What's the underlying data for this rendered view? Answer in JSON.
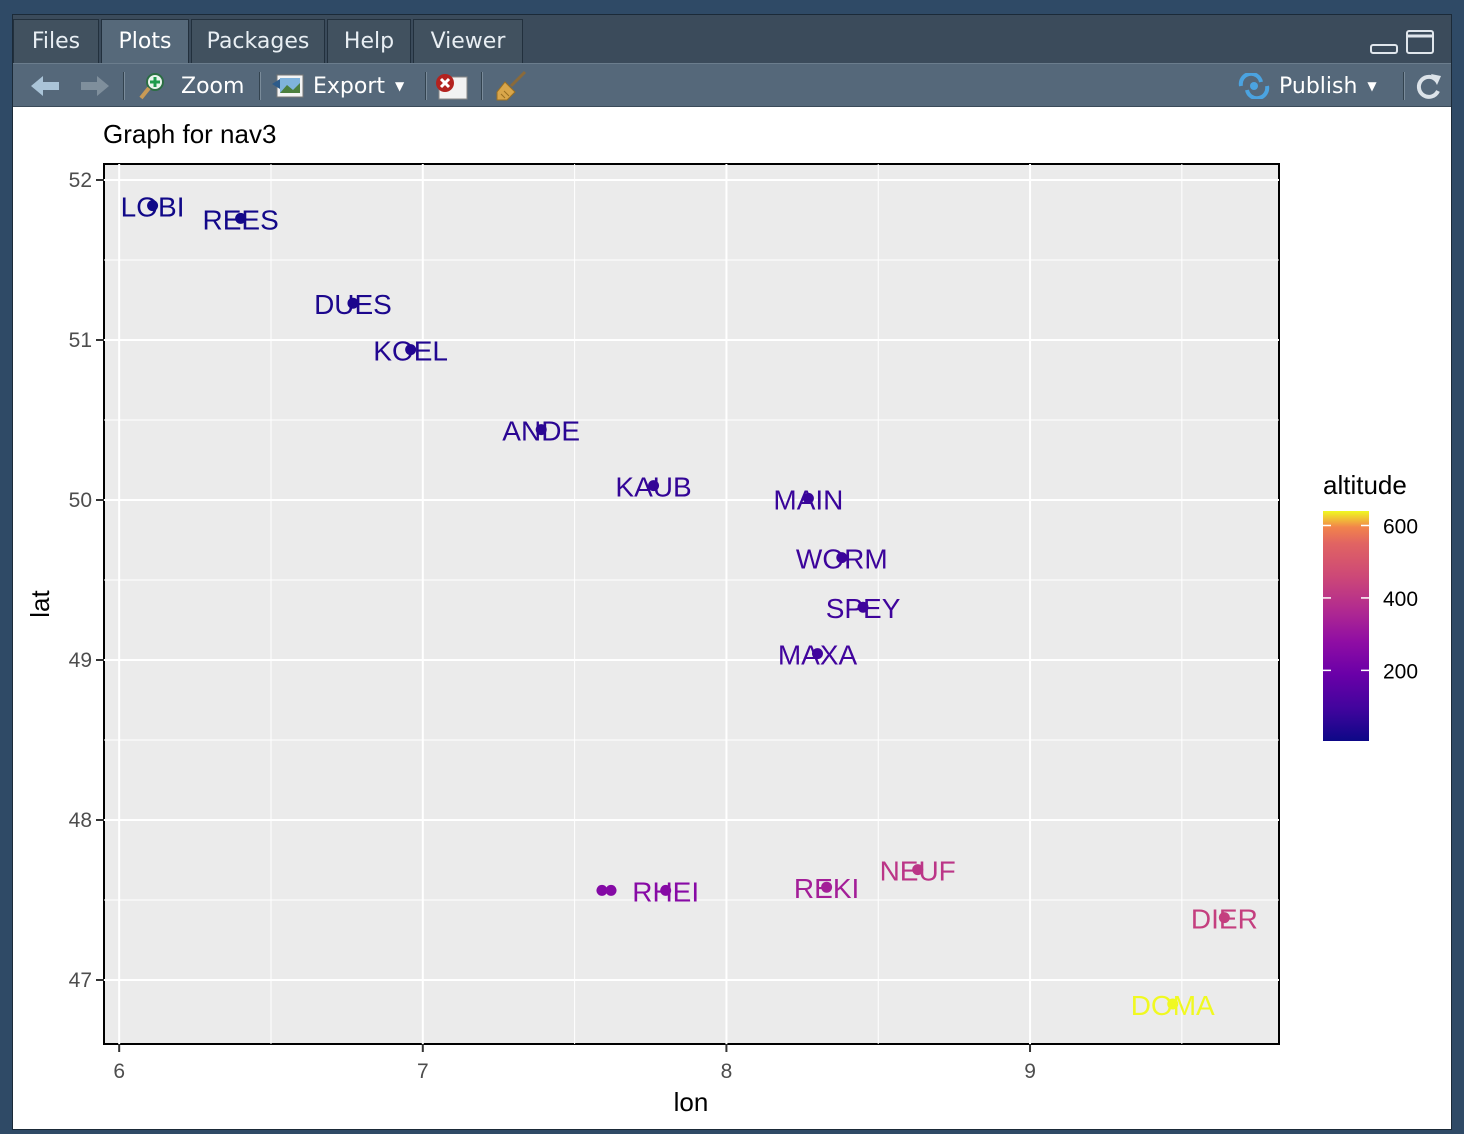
{
  "tabs": [
    {
      "label": "Files"
    },
    {
      "label": "Plots"
    },
    {
      "label": "Packages"
    },
    {
      "label": "Help"
    },
    {
      "label": "Viewer"
    }
  ],
  "toolbar": {
    "zoom_label": "Zoom",
    "export_label": "Export",
    "publish_label": "Publish"
  },
  "chart_data": {
    "type": "scatter",
    "title": "Graph for nav3",
    "xlabel": "lon",
    "ylabel": "lat",
    "xlim": [
      5.95,
      9.82
    ],
    "ylim": [
      46.6,
      52.1
    ],
    "xticks": [
      6,
      7,
      8,
      9
    ],
    "yticks": [
      47,
      48,
      49,
      50,
      51,
      52
    ],
    "grid": true,
    "legend": {
      "title": "altitude",
      "position": "right",
      "ticks": [
        200,
        400,
        600
      ],
      "range": [
        5,
        640
      ]
    },
    "points": [
      {
        "label": "LOBI",
        "lon": 6.11,
        "lat": 51.84,
        "altitude": 10
      },
      {
        "label": "REES",
        "lon": 6.4,
        "lat": 51.76,
        "altitude": 15
      },
      {
        "label": "DUES",
        "lon": 6.77,
        "lat": 51.23,
        "altitude": 30
      },
      {
        "label": "KOEL",
        "lon": 6.96,
        "lat": 50.94,
        "altitude": 40
      },
      {
        "label": "ANDE",
        "lon": 7.39,
        "lat": 50.44,
        "altitude": 55
      },
      {
        "label": "KAUB",
        "lon": 7.76,
        "lat": 50.09,
        "altitude": 70
      },
      {
        "label": "MAIN",
        "lon": 8.27,
        "lat": 50.01,
        "altitude": 80
      },
      {
        "label": "WORM",
        "lon": 8.38,
        "lat": 49.64,
        "altitude": 86
      },
      {
        "label": "SPEY",
        "lon": 8.45,
        "lat": 49.33,
        "altitude": 90
      },
      {
        "label": "MAXA",
        "lon": 8.3,
        "lat": 49.04,
        "altitude": 95
      },
      {
        "label": "RHEI",
        "lon": 7.8,
        "lat": 47.56,
        "altitude": 260
      },
      {
        "label": "",
        "lon": 7.59,
        "lat": 47.56,
        "altitude": 250
      },
      {
        "label": "",
        "lon": 7.62,
        "lat": 47.56,
        "altitude": 255
      },
      {
        "label": "REKI",
        "lon": 8.33,
        "lat": 47.58,
        "altitude": 330
      },
      {
        "label": "NEUF",
        "lon": 8.63,
        "lat": 47.69,
        "altitude": 400
      },
      {
        "label": "DIER",
        "lon": 9.64,
        "lat": 47.39,
        "altitude": 430
      },
      {
        "label": "DOMA",
        "lon": 9.47,
        "lat": 46.85,
        "altitude": 640
      }
    ]
  }
}
